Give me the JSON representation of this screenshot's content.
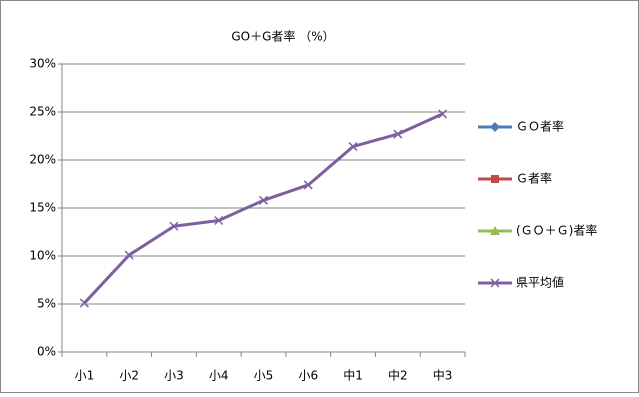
{
  "chart_data": {
    "type": "line",
    "title": "GO＋G者率 （%）",
    "categories": [
      "小1",
      "小2",
      "小3",
      "小4",
      "小5",
      "小6",
      "中1",
      "中2",
      "中3"
    ],
    "series": [
      {
        "name": "ＧＯ者率",
        "color": "#4a7ebb",
        "marker": "diamond",
        "values": [
          null,
          null,
          null,
          null,
          null,
          null,
          null,
          null,
          null
        ]
      },
      {
        "name": "Ｇ者率",
        "color": "#be4b48",
        "marker": "square",
        "values": [
          null,
          null,
          null,
          null,
          null,
          null,
          null,
          null,
          null
        ]
      },
      {
        "name": "(ＧＯ＋Ｇ)者率",
        "color": "#98b954",
        "marker": "triangle",
        "values": [
          null,
          null,
          null,
          null,
          null,
          null,
          null,
          null,
          null
        ]
      },
      {
        "name": "県平均値",
        "color": "#7d60a0",
        "marker": "x",
        "values": [
          5.1,
          10.1,
          13.1,
          13.7,
          15.8,
          17.4,
          21.4,
          22.7,
          24.8
        ]
      }
    ],
    "ylim": [
      0,
      30
    ],
    "yticks": [
      {
        "value": 0,
        "label": "0%"
      },
      {
        "value": 5,
        "label": "5%"
      },
      {
        "value": 10,
        "label": "10%"
      },
      {
        "value": 15,
        "label": "15%"
      },
      {
        "value": 20,
        "label": "20%"
      },
      {
        "value": 25,
        "label": "25%"
      },
      {
        "value": 30,
        "label": "30%"
      }
    ],
    "grid": true,
    "legend": "right"
  }
}
